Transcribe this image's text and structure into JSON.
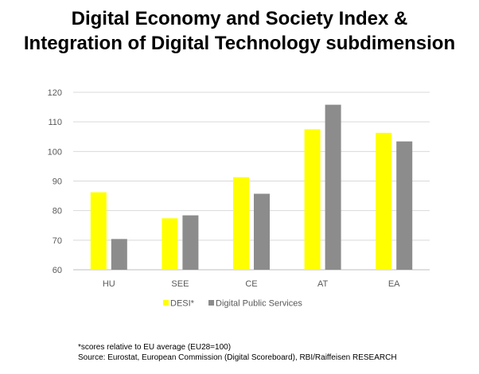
{
  "title_line1": "Digital Economy and Society Index &",
  "title_line2": "Integration of Digital Technology subdimension",
  "footnote": "*scores relative to EU average (EU28=100)",
  "source": "Source: Eurostat, European Commission (Digital Scoreboard), RBI/Raiffeisen RESEARCH",
  "chart_data": {
    "type": "bar",
    "categories": [
      "HU",
      "SEE",
      "CE",
      "AT",
      "EA"
    ],
    "series": [
      {
        "name": "DESI*",
        "color": "#ffff00",
        "values": [
          86.2,
          77.4,
          91.3,
          107.5,
          106.3
        ]
      },
      {
        "name": "Digital Public Services",
        "color": "#8c8c8c",
        "values": [
          70.4,
          78.4,
          85.7,
          115.8,
          103.4
        ]
      }
    ],
    "ylim": [
      60,
      120
    ],
    "yticks": [
      60,
      70,
      80,
      90,
      100,
      110,
      120
    ],
    "grid": true,
    "legend_position": "bottom"
  }
}
